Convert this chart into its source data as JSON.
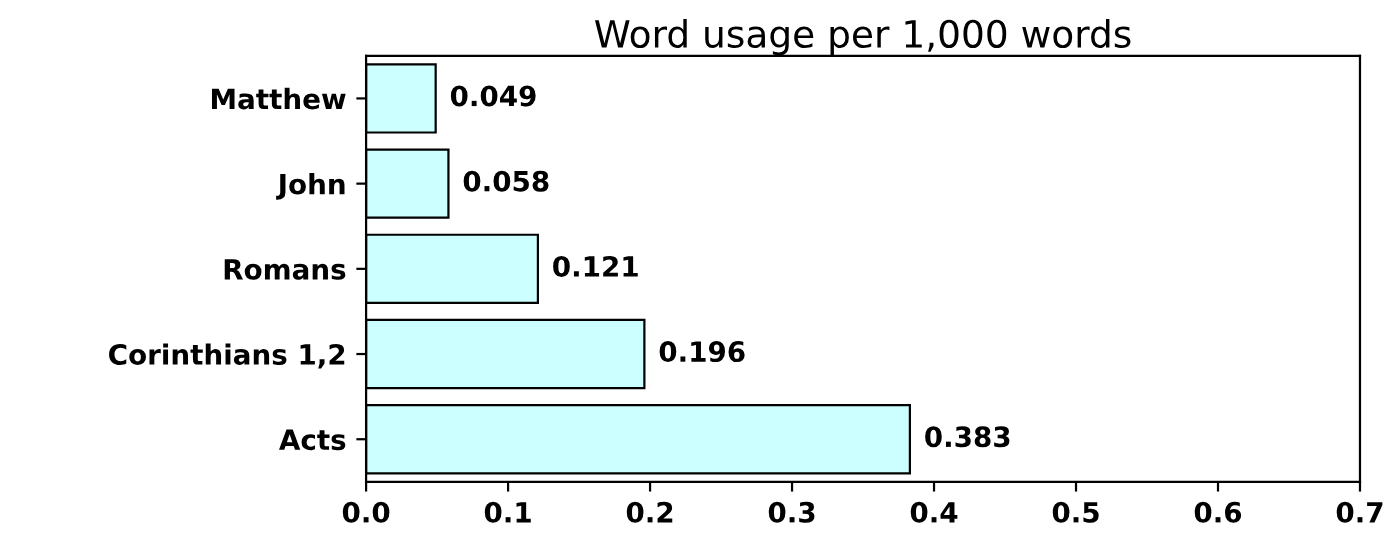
{
  "chart_data": {
    "type": "bar",
    "orientation": "horizontal",
    "title": "Word usage per 1,000 words",
    "categories": [
      "Matthew",
      "John",
      "Romans",
      "Corinthians 1,2",
      "Acts"
    ],
    "values": [
      0.049,
      0.058,
      0.121,
      0.196,
      0.383
    ],
    "color": "#ccffff",
    "xlim": [
      0.0,
      0.7
    ],
    "xticks": [
      {
        "value": 0,
        "label": "0.0"
      },
      0.1,
      0.2,
      0.3,
      0.4,
      0.5,
      0.6,
      0.7
    ],
    "data_labels": true,
    "grid": false
  }
}
